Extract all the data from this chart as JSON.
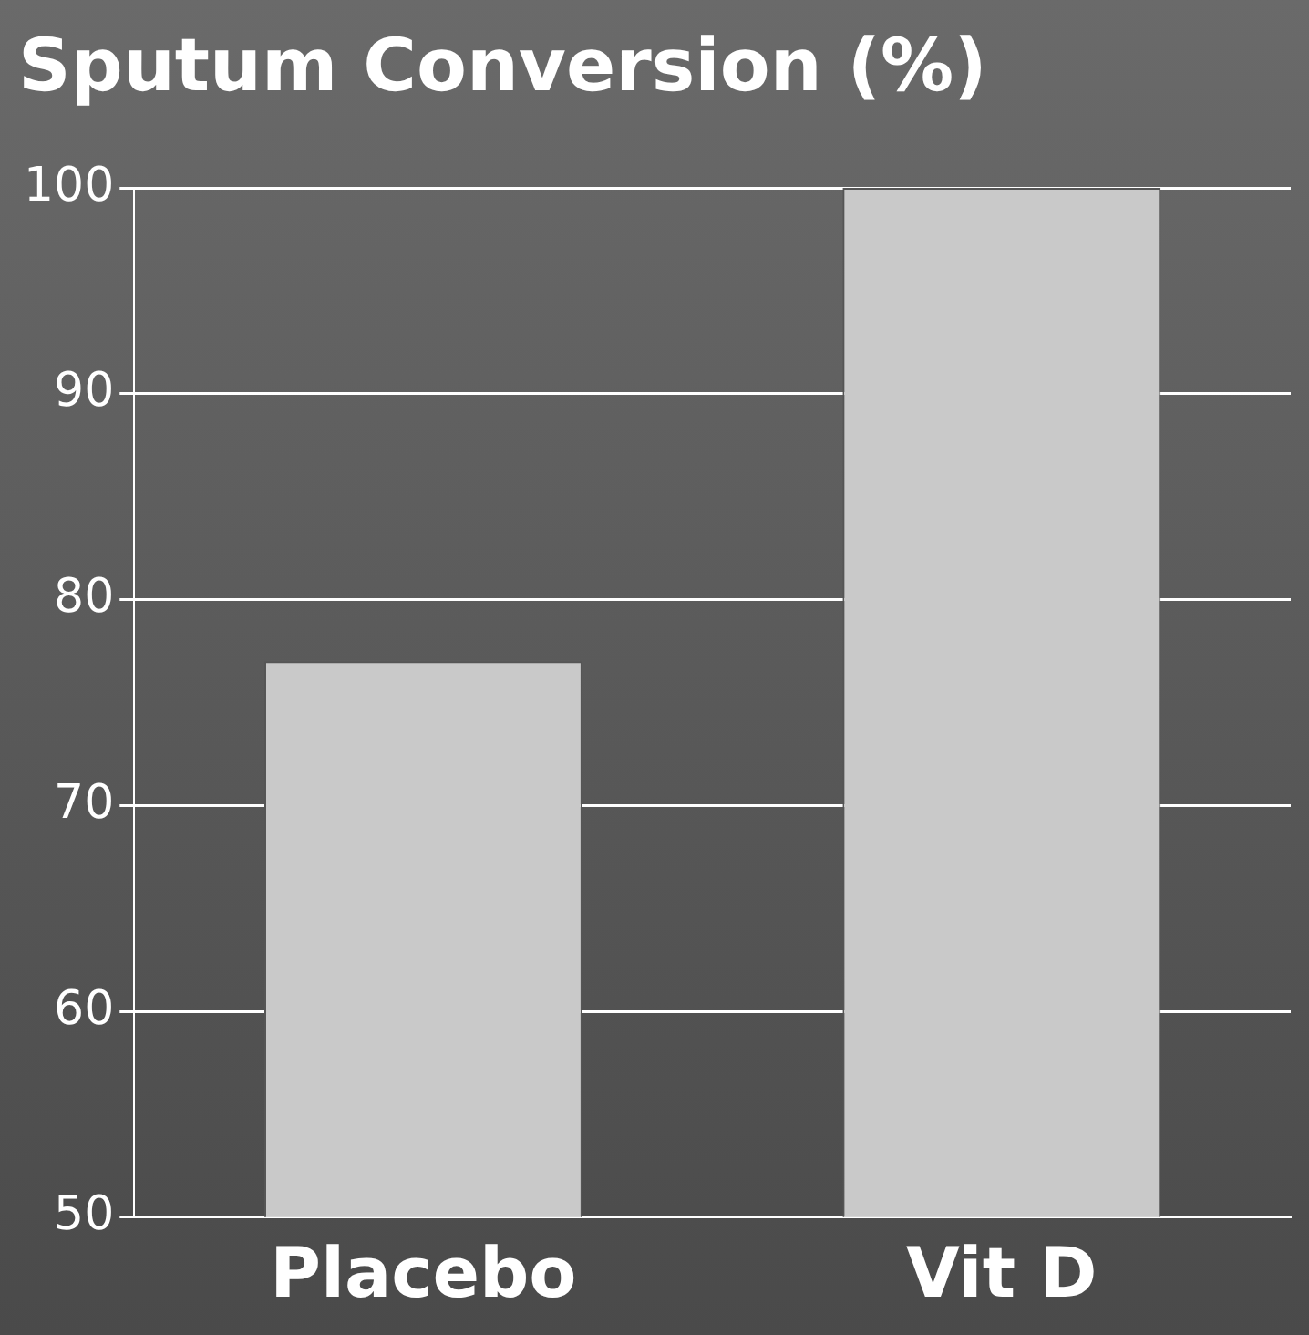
{
  "chart_data": {
    "type": "bar",
    "title": "Sputum Conversion (%)",
    "categories": [
      "Placebo",
      "Vit D"
    ],
    "values": [
      77,
      100
    ],
    "color": "#c9c9c9",
    "ylim": [
      50,
      100
    ],
    "yticks": [
      50,
      60,
      70,
      80,
      90,
      100
    ],
    "grid": "y"
  }
}
